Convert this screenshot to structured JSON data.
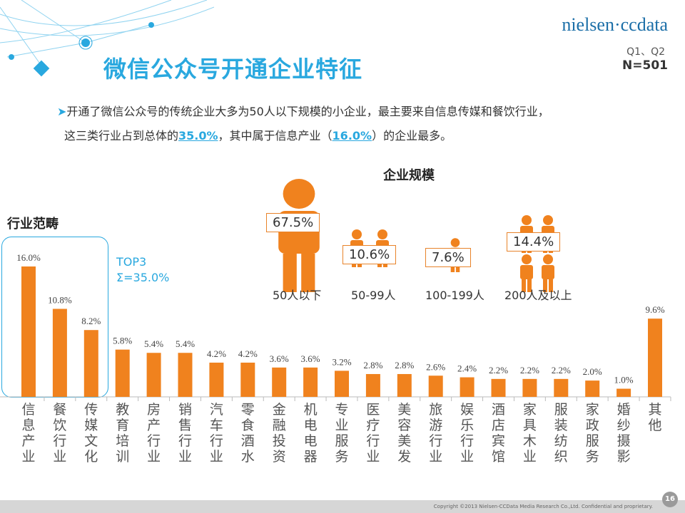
{
  "header": {
    "title": "微信公众号开通企业特征",
    "logo": "nielsen·ccdata",
    "period": "Q1、Q2",
    "sample": "N=501"
  },
  "summary": {
    "line1": "开通了微信公众号的传统企业大多为50人以下规模的小企业，最主要来自信息传媒和餐饮行业，",
    "line2_a": "这三类行业占到总体的",
    "line2_b": "35.0%",
    "line2_c": "，其中属于信息产业（",
    "line2_d": "16.0%",
    "line2_e": "）的企业最多。"
  },
  "size_section": {
    "title": "企业规模",
    "groups": [
      {
        "label": "50人以下",
        "value": "67.5%"
      },
      {
        "label": "50-99人",
        "value": "10.6%"
      },
      {
        "label": "100-199人",
        "value": "7.6%"
      },
      {
        "label": "200人及以上",
        "value": "14.4%"
      }
    ]
  },
  "industry_section": {
    "title": "行业范畴",
    "top3_line1": "TOP3",
    "top3_line2": "Σ=35.0%"
  },
  "chart_data": {
    "type": "bar",
    "categories": [
      "信息产业",
      "餐饮行业",
      "传媒文化",
      "教育培训",
      "房产行业",
      "销售行业",
      "汽车行业",
      "零食酒水",
      "金融投资",
      "机电电器",
      "专业服务",
      "医疗行业",
      "美容美发",
      "旅游行业",
      "娱乐行业",
      "酒店宾馆",
      "家具木业",
      "服装纺织",
      "家政服务",
      "婚纱摄影",
      "其他"
    ],
    "values": [
      16.0,
      10.8,
      8.2,
      5.8,
      5.4,
      5.4,
      4.2,
      4.2,
      3.6,
      3.6,
      3.2,
      2.8,
      2.8,
      2.6,
      2.4,
      2.2,
      2.2,
      2.2,
      2.0,
      1.0,
      9.6
    ],
    "labels": [
      "16.0%",
      "10.8%",
      "8.2%",
      "5.8%",
      "5.4%",
      "5.4%",
      "4.2%",
      "4.2%",
      "3.6%",
      "3.6%",
      "3.2%",
      "2.8%",
      "2.8%",
      "2.6%",
      "2.4%",
      "2.2%",
      "2.2%",
      "2.2%",
      "2.0%",
      "1.0%",
      "9.6%"
    ],
    "ylim": [
      0,
      16
    ],
    "grid": false,
    "bar_color": "#f0821e"
  },
  "footer": {
    "copyright": "Copyright ©2013  Nielsen-CCData Media Research Co.,Ltd. Confidential and proprietary.",
    "page": "16"
  },
  "colors": {
    "accent": "#29a8df",
    "orange": "#f0821e"
  }
}
